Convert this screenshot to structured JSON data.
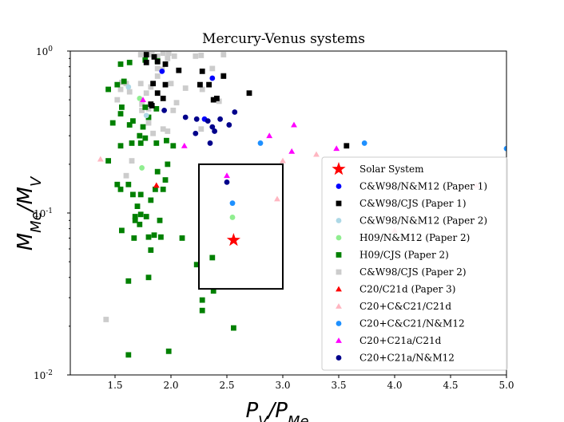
{
  "chart_data": {
    "type": "scatter",
    "title": "Mercury-Venus systems",
    "xlabel": "P_V/P_Me",
    "ylabel": "M_Me/M_V",
    "xlim": [
      1.1,
      5.0
    ],
    "ylim": [
      0.01,
      1.0
    ],
    "yscale": "log",
    "x_ticks": [
      "1.5",
      "2.0",
      "2.5",
      "3.0",
      "3.5",
      "4.0",
      "4.5",
      "5.0"
    ],
    "y_ticks": [
      "10^-2",
      "10^-1",
      "10^0"
    ],
    "legend_position": "lower-right",
    "box": {
      "x": [
        2.25,
        3.0
      ],
      "y": [
        0.034,
        0.2
      ]
    },
    "series": [
      {
        "name": "Solar System",
        "color": "#ff0000",
        "marker": "star",
        "points": [
          [
            2.56,
            0.068
          ]
        ]
      },
      {
        "name": "C&W98/N&M12 (Paper 1)",
        "color": "#0000ff",
        "marker": "circle",
        "points": [
          [
            2.37,
            0.68
          ],
          [
            2.3,
            0.38
          ],
          [
            1.92,
            0.75
          ]
        ]
      },
      {
        "name": "C&W98/CJS (Paper 1)",
        "color": "#000000",
        "marker": "square",
        "points": [
          [
            1.78,
            0.95
          ],
          [
            1.85,
            0.92
          ],
          [
            1.88,
            0.86
          ],
          [
            1.95,
            0.83
          ],
          [
            2.07,
            0.76
          ],
          [
            2.28,
            0.75
          ],
          [
            2.47,
            0.7
          ],
          [
            1.84,
            0.63
          ],
          [
            1.95,
            0.62
          ],
          [
            2.26,
            0.62
          ],
          [
            2.34,
            0.62
          ],
          [
            1.88,
            0.55
          ],
          [
            1.93,
            0.51
          ],
          [
            2.41,
            0.51
          ],
          [
            2.38,
            0.5
          ],
          [
            2.7,
            0.55
          ],
          [
            1.83,
            0.46
          ],
          [
            1.78,
            0.85
          ],
          [
            1.82,
            0.47
          ],
          [
            3.57,
            0.26
          ]
        ]
      },
      {
        "name": "C&W98/N&M12 (Paper 2)",
        "color": "#add8e6",
        "marker": "circle",
        "points": [
          [
            1.62,
            0.6
          ],
          [
            1.78,
            0.4
          ]
        ]
      },
      {
        "name": "H09/N&M12 (Paper 2)",
        "color": "#90ee90",
        "marker": "circle",
        "points": [
          [
            1.72,
            0.51
          ],
          [
            1.74,
            0.19
          ],
          [
            2.55,
            0.094
          ]
        ]
      },
      {
        "name": "H09/CJS (Paper 2)",
        "color": "#008000",
        "marker": "square",
        "points": [
          [
            1.55,
            0.83
          ],
          [
            1.63,
            0.85
          ],
          [
            1.77,
            0.88
          ],
          [
            1.88,
            0.87
          ],
          [
            1.44,
            0.58
          ],
          [
            1.52,
            0.62
          ],
          [
            1.58,
            0.65
          ],
          [
            1.56,
            0.45
          ],
          [
            1.55,
            0.41
          ],
          [
            1.77,
            0.45
          ],
          [
            1.8,
            0.39
          ],
          [
            1.87,
            0.44
          ],
          [
            1.63,
            0.35
          ],
          [
            1.66,
            0.37
          ],
          [
            1.75,
            0.34
          ],
          [
            1.48,
            0.36
          ],
          [
            1.72,
            0.3
          ],
          [
            1.77,
            0.29
          ],
          [
            1.87,
            0.27
          ],
          [
            1.96,
            0.28
          ],
          [
            2.02,
            0.26
          ],
          [
            1.55,
            0.26
          ],
          [
            1.65,
            0.27
          ],
          [
            1.73,
            0.27
          ],
          [
            1.44,
            0.21
          ],
          [
            1.97,
            0.2
          ],
          [
            1.88,
            0.18
          ],
          [
            1.95,
            0.16
          ],
          [
            1.52,
            0.15
          ],
          [
            1.62,
            0.15
          ],
          [
            1.55,
            0.14
          ],
          [
            1.66,
            0.13
          ],
          [
            1.73,
            0.13
          ],
          [
            1.86,
            0.14
          ],
          [
            1.93,
            0.14
          ],
          [
            1.82,
            0.12
          ],
          [
            1.7,
            0.11
          ],
          [
            1.68,
            0.095
          ],
          [
            1.73,
            0.098
          ],
          [
            1.78,
            0.095
          ],
          [
            1.68,
            0.09
          ],
          [
            1.72,
            0.085
          ],
          [
            1.9,
            0.09
          ],
          [
            1.56,
            0.078
          ],
          [
            1.8,
            0.071
          ],
          [
            1.85,
            0.073
          ],
          [
            1.67,
            0.07
          ],
          [
            1.91,
            0.071
          ],
          [
            2.1,
            0.07
          ],
          [
            1.82,
            0.059
          ],
          [
            2.37,
            0.053
          ],
          [
            2.23,
            0.048
          ],
          [
            1.62,
            0.038
          ],
          [
            1.8,
            0.04
          ],
          [
            2.38,
            0.033
          ],
          [
            2.28,
            0.029
          ],
          [
            2.28,
            0.025
          ],
          [
            2.56,
            0.0195
          ],
          [
            1.98,
            0.014
          ],
          [
            1.62,
            0.0133
          ]
        ]
      },
      {
        "name": "C&W98/CJS (Paper 2)",
        "color": "#cccccc",
        "marker": "square",
        "points": [
          [
            1.73,
            0.95
          ],
          [
            1.83,
            0.95
          ],
          [
            1.93,
            0.97
          ],
          [
            1.98,
            0.97
          ],
          [
            1.88,
            0.93
          ],
          [
            1.97,
            0.9
          ],
          [
            2.03,
            0.93
          ],
          [
            2.22,
            0.93
          ],
          [
            2.27,
            0.94
          ],
          [
            1.88,
            0.78
          ],
          [
            1.92,
            0.77
          ],
          [
            2.37,
            0.78
          ],
          [
            2.47,
            0.71
          ],
          [
            1.56,
            0.64
          ],
          [
            1.6,
            0.63
          ],
          [
            1.73,
            0.63
          ],
          [
            1.82,
            0.6
          ],
          [
            2.13,
            0.59
          ],
          [
            2.28,
            0.58
          ],
          [
            1.55,
            0.58
          ],
          [
            1.63,
            0.56
          ],
          [
            1.78,
            0.55
          ],
          [
            2.4,
            0.5
          ],
          [
            2.43,
            0.49
          ],
          [
            1.52,
            0.5
          ],
          [
            1.74,
            0.47
          ],
          [
            1.8,
            0.44
          ],
          [
            2.05,
            0.48
          ],
          [
            1.74,
            0.43
          ],
          [
            2.02,
            0.43
          ],
          [
            1.8,
            0.36
          ],
          [
            1.93,
            0.33
          ],
          [
            2.27,
            0.33
          ],
          [
            1.84,
            0.31
          ],
          [
            1.97,
            0.32
          ],
          [
            1.6,
            0.17
          ],
          [
            1.65,
            0.21
          ],
          [
            1.42,
            0.022
          ],
          [
            2.47,
            0.95
          ],
          [
            1.88,
            0.7
          ],
          [
            2.0,
            0.63
          ]
        ]
      },
      {
        "name": "C20/C21d (Paper 3)",
        "color": "#ff0000",
        "marker": "triangle",
        "points": [
          [
            1.87,
            0.148
          ]
        ]
      },
      {
        "name": "C20+C&C21/C21d",
        "color": "#ffb6c1",
        "marker": "triangle",
        "points": [
          [
            1.37,
            0.215
          ],
          [
            2.95,
            0.122
          ],
          [
            3.0,
            0.21
          ],
          [
            3.3,
            0.23
          ],
          [
            4.0,
            0.078
          ],
          [
            4.73,
            0.148
          ]
        ]
      },
      {
        "name": "C20+C&C21/N&M12",
        "color": "#1e90ff",
        "marker": "circle",
        "points": [
          [
            2.55,
            0.115
          ],
          [
            2.8,
            0.27
          ],
          [
            3.73,
            0.27
          ],
          [
            5.0,
            0.25
          ]
        ]
      },
      {
        "name": "C20+C21a/C21d",
        "color": "#ff00ff",
        "marker": "triangle",
        "points": [
          [
            1.75,
            0.5
          ],
          [
            2.12,
            0.26
          ],
          [
            2.5,
            0.17
          ],
          [
            2.88,
            0.3
          ],
          [
            3.1,
            0.35
          ],
          [
            3.08,
            0.24
          ],
          [
            3.48,
            0.25
          ]
        ]
      },
      {
        "name": "C20+C21a/N&M12",
        "color": "#00008b",
        "marker": "circle",
        "points": [
          [
            2.57,
            0.42
          ],
          [
            2.52,
            0.35
          ],
          [
            2.37,
            0.34
          ],
          [
            2.39,
            0.32
          ],
          [
            2.13,
            0.39
          ],
          [
            2.23,
            0.38
          ],
          [
            2.33,
            0.37
          ],
          [
            2.44,
            0.38
          ],
          [
            1.94,
            0.43
          ],
          [
            2.22,
            0.31
          ],
          [
            2.35,
            0.27
          ],
          [
            2.5,
            0.155
          ]
        ]
      }
    ]
  }
}
